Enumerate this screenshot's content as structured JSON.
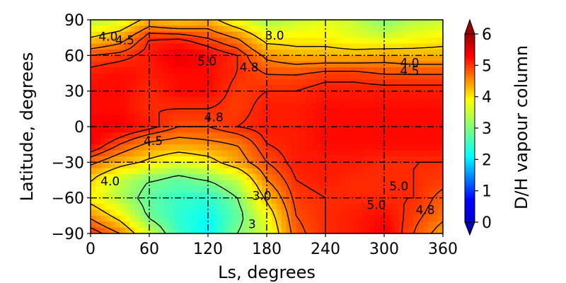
{
  "chart_data": {
    "type": "heatmap",
    "xlabel": "Ls, degrees",
    "ylabel": "Latitude, degrees",
    "xlim": [
      0,
      360
    ],
    "ylim": [
      -90,
      90
    ],
    "xticks": [
      "0",
      "60",
      "120",
      "180",
      "240",
      "300",
      "360"
    ],
    "xtick_values": [
      0,
      60,
      120,
      180,
      240,
      300,
      360
    ],
    "yticks": [
      "−90",
      "−60",
      "−30",
      "0",
      "30",
      "60",
      "90"
    ],
    "ytick_values": [
      -90,
      -60,
      -30,
      0,
      30,
      60,
      90
    ],
    "grid": "dash-dot",
    "colorbar": {
      "label": "D/H vapour column",
      "range": [
        0,
        6
      ],
      "ticks": [
        "0",
        "1",
        "2",
        "3",
        "4",
        "5",
        "6"
      ],
      "tick_values": [
        0,
        1,
        2,
        3,
        4,
        5,
        6
      ],
      "extend": "both",
      "colormap": "jet"
    },
    "grid_x": [
      0,
      30,
      60,
      90,
      120,
      150,
      180,
      210,
      240,
      270,
      300,
      330,
      360
    ],
    "grid_y": [
      90,
      75,
      60,
      45,
      30,
      15,
      0,
      -15,
      -30,
      -45,
      -60,
      -75,
      -90
    ],
    "values": [
      [
        3.3,
        3.5,
        4.2,
        4.0,
        4.2,
        3.6,
        3.2,
        3.4,
        3.6,
        3.4,
        3.0,
        3.3,
        3.4
      ],
      [
        4.0,
        4.3,
        5.0,
        5.0,
        4.8,
        4.5,
        3.8,
        3.8,
        3.8,
        3.6,
        3.5,
        3.7,
        3.8
      ],
      [
        4.8,
        4.9,
        5.1,
        5.4,
        5.2,
        5.0,
        4.4,
        4.2,
        4.2,
        4.2,
        4.3,
        4.2,
        4.2
      ],
      [
        5.1,
        5.2,
        5.1,
        5.2,
        5.2,
        5.0,
        4.8,
        4.8,
        4.9,
        4.9,
        4.8,
        4.8,
        4.8
      ],
      [
        5.2,
        5.2,
        5.0,
        5.2,
        5.2,
        4.9,
        5.0,
        5.0,
        5.1,
        5.1,
        5.1,
        5.1,
        5.1
      ],
      [
        5.2,
        5.2,
        5.0,
        5.0,
        5.0,
        4.9,
        5.1,
        5.1,
        5.2,
        5.2,
        5.2,
        5.2,
        5.2
      ],
      [
        5.3,
        5.3,
        5.1,
        4.8,
        4.8,
        5.0,
        5.1,
        5.1,
        5.2,
        5.2,
        5.2,
        5.2,
        5.2
      ],
      [
        5.3,
        4.8,
        4.4,
        4.3,
        4.4,
        4.5,
        5.0,
        5.1,
        5.2,
        5.2,
        5.2,
        5.2,
        5.2
      ],
      [
        4.6,
        4.2,
        3.9,
        3.6,
        3.8,
        4.3,
        4.8,
        5.1,
        5.1,
        5.1,
        5.0,
        5.0,
        5.0
      ],
      [
        4.0,
        3.4,
        3.0,
        2.8,
        3.0,
        3.4,
        4.5,
        5.0,
        5.1,
        5.0,
        5.0,
        5.0,
        4.9
      ],
      [
        3.8,
        3.3,
        2.8,
        2.6,
        2.5,
        3.0,
        4.1,
        4.9,
        5.0,
        5.0,
        5.0,
        5.0,
        4.7
      ],
      [
        4.4,
        3.8,
        2.9,
        2.5,
        2.3,
        2.8,
        3.7,
        4.8,
        5.0,
        5.1,
        5.2,
        4.9,
        4.6
      ],
      [
        5.0,
        4.5,
        3.5,
        2.6,
        2.2,
        3.0,
        3.5,
        4.7,
        5.0,
        5.1,
        5.3,
        4.8,
        4.3
      ]
    ],
    "contour_levels": [
      3.0,
      4.0,
      4.5,
      4.8,
      5.0
    ],
    "contour_labels": [
      {
        "text": "4.0",
        "x": 18,
        "y": 76
      },
      {
        "text": "4.5",
        "x": 35,
        "y": 73
      },
      {
        "text": "3.0",
        "x": 188,
        "y": 77
      },
      {
        "text": "5.0",
        "x": 119,
        "y": 55
      },
      {
        "text": "4.8",
        "x": 162,
        "y": 50
      },
      {
        "text": "4.0",
        "x": 326,
        "y": 54
      },
      {
        "text": "4.5",
        "x": 326,
        "y": 47
      },
      {
        "text": "4.8",
        "x": 126,
        "y": 8
      },
      {
        "text": "4.5",
        "x": 64,
        "y": -12
      },
      {
        "text": "4.0",
        "x": 20,
        "y": -46
      },
      {
        "text": "3.0",
        "x": 175,
        "y": -58
      },
      {
        "text": "3",
        "x": 165,
        "y": -82
      },
      {
        "text": "5.0",
        "x": 315,
        "y": -50
      },
      {
        "text": "5.0",
        "x": 292,
        "y": -66
      },
      {
        "text": "4.8",
        "x": 342,
        "y": -70
      }
    ]
  }
}
